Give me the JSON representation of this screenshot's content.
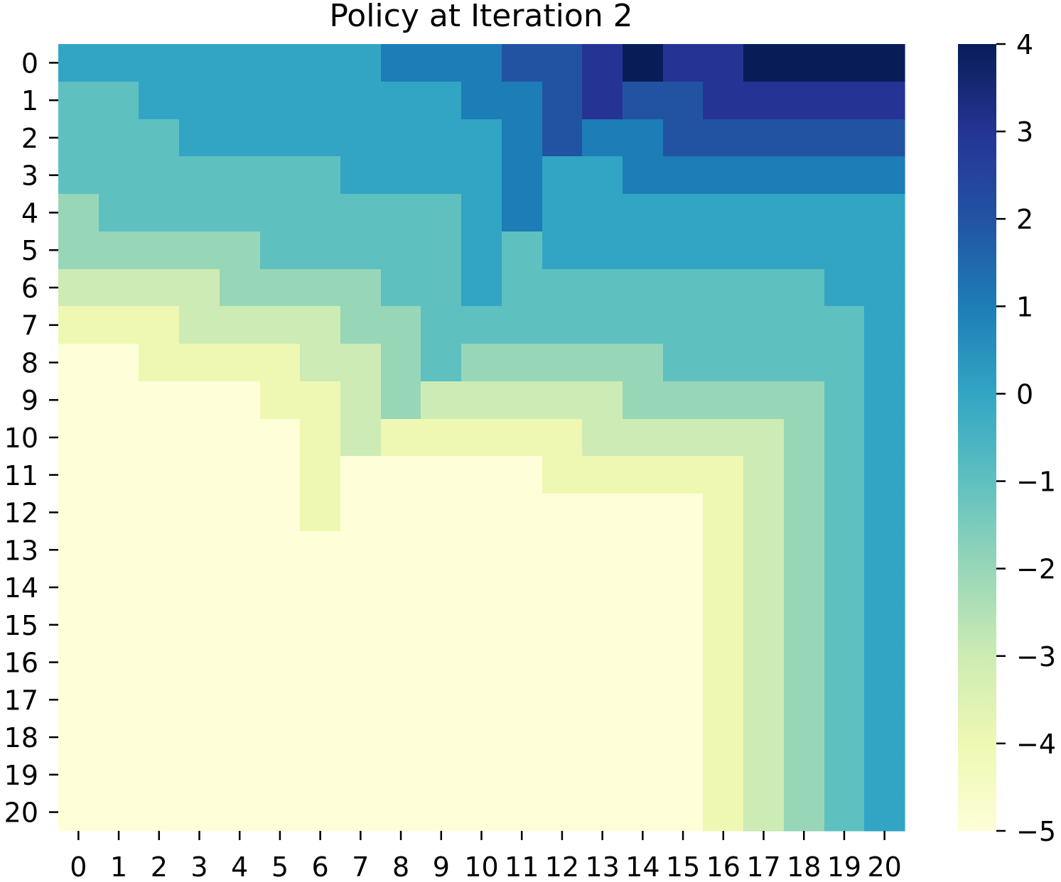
{
  "chart_data": {
    "type": "heatmap",
    "title": "Policy at Iteration 2",
    "xlabel": "",
    "ylabel": "",
    "x_categories": [
      "0",
      "1",
      "2",
      "3",
      "4",
      "5",
      "6",
      "7",
      "8",
      "9",
      "10",
      "11",
      "12",
      "13",
      "14",
      "15",
      "16",
      "17",
      "18",
      "19",
      "20"
    ],
    "y_categories": [
      "0",
      "1",
      "2",
      "3",
      "4",
      "5",
      "6",
      "7",
      "8",
      "9",
      "10",
      "11",
      "12",
      "13",
      "14",
      "15",
      "16",
      "17",
      "18",
      "19",
      "20"
    ],
    "values": [
      [
        0,
        0,
        0,
        0,
        0,
        0,
        0,
        0,
        1,
        1,
        1,
        2,
        2,
        3,
        4,
        3,
        3,
        4,
        4,
        4,
        4
      ],
      [
        -1,
        -1,
        0,
        0,
        0,
        0,
        0,
        0,
        0,
        0,
        1,
        1,
        2,
        3,
        2,
        2,
        3,
        3,
        3,
        3,
        3
      ],
      [
        -1,
        -1,
        -1,
        0,
        0,
        0,
        0,
        0,
        0,
        0,
        0,
        1,
        2,
        1,
        1,
        2,
        2,
        2,
        2,
        2,
        2
      ],
      [
        -1,
        -1,
        -1,
        -1,
        -1,
        -1,
        -1,
        0,
        0,
        0,
        0,
        1,
        0,
        0,
        1,
        1,
        1,
        1,
        1,
        1,
        1
      ],
      [
        -2,
        -1,
        -1,
        -1,
        -1,
        -1,
        -1,
        -1,
        -1,
        -1,
        0,
        1,
        0,
        0,
        0,
        0,
        0,
        0,
        0,
        0,
        0
      ],
      [
        -2,
        -2,
        -2,
        -2,
        -2,
        -1,
        -1,
        -1,
        -1,
        -1,
        0,
        -1,
        0,
        0,
        0,
        0,
        0,
        0,
        0,
        0,
        0
      ],
      [
        -3,
        -3,
        -3,
        -3,
        -2,
        -2,
        -2,
        -2,
        -1,
        -1,
        0,
        -1,
        -1,
        -1,
        -1,
        -1,
        -1,
        -1,
        -1,
        0,
        0
      ],
      [
        -4,
        -4,
        -4,
        -3,
        -3,
        -3,
        -3,
        -2,
        -2,
        -1,
        -1,
        -1,
        -1,
        -1,
        -1,
        -1,
        -1,
        -1,
        -1,
        -1,
        0
      ],
      [
        -5,
        -5,
        -4,
        -4,
        -4,
        -4,
        -3,
        -3,
        -2,
        -1,
        -2,
        -2,
        -2,
        -2,
        -2,
        -1,
        -1,
        -1,
        -1,
        -1,
        0
      ],
      [
        -5,
        -5,
        -5,
        -5,
        -5,
        -4,
        -4,
        -3,
        -2,
        -3,
        -3,
        -3,
        -3,
        -3,
        -2,
        -2,
        -2,
        -2,
        -2,
        -1,
        0
      ],
      [
        -5,
        -5,
        -5,
        -5,
        -5,
        -5,
        -4,
        -3,
        -4,
        -4,
        -4,
        -4,
        -4,
        -3,
        -3,
        -3,
        -3,
        -3,
        -2,
        -1,
        0
      ],
      [
        -5,
        -5,
        -5,
        -5,
        -5,
        -5,
        -4,
        -5,
        -5,
        -5,
        -5,
        -5,
        -4,
        -4,
        -4,
        -4,
        -4,
        -3,
        -2,
        -1,
        0
      ],
      [
        -5,
        -5,
        -5,
        -5,
        -5,
        -5,
        -4,
        -5,
        -5,
        -5,
        -5,
        -5,
        -5,
        -5,
        -5,
        -5,
        -4,
        -3,
        -2,
        -1,
        0
      ],
      [
        -5,
        -5,
        -5,
        -5,
        -5,
        -5,
        -5,
        -5,
        -5,
        -5,
        -5,
        -5,
        -5,
        -5,
        -5,
        -5,
        -4,
        -3,
        -2,
        -1,
        0
      ],
      [
        -5,
        -5,
        -5,
        -5,
        -5,
        -5,
        -5,
        -5,
        -5,
        -5,
        -5,
        -5,
        -5,
        -5,
        -5,
        -5,
        -4,
        -3,
        -2,
        -1,
        0
      ],
      [
        -5,
        -5,
        -5,
        -5,
        -5,
        -5,
        -5,
        -5,
        -5,
        -5,
        -5,
        -5,
        -5,
        -5,
        -5,
        -5,
        -4,
        -3,
        -2,
        -1,
        0
      ],
      [
        -5,
        -5,
        -5,
        -5,
        -5,
        -5,
        -5,
        -5,
        -5,
        -5,
        -5,
        -5,
        -5,
        -5,
        -5,
        -5,
        -4,
        -3,
        -2,
        -1,
        0
      ],
      [
        -5,
        -5,
        -5,
        -5,
        -5,
        -5,
        -5,
        -5,
        -5,
        -5,
        -5,
        -5,
        -5,
        -5,
        -5,
        -5,
        -4,
        -3,
        -2,
        -1,
        0
      ],
      [
        -5,
        -5,
        -5,
        -5,
        -5,
        -5,
        -5,
        -5,
        -5,
        -5,
        -5,
        -5,
        -5,
        -5,
        -5,
        -5,
        -4,
        -3,
        -2,
        -1,
        0
      ],
      [
        -5,
        -5,
        -5,
        -5,
        -5,
        -5,
        -5,
        -5,
        -5,
        -5,
        -5,
        -5,
        -5,
        -5,
        -5,
        -5,
        -4,
        -3,
        -2,
        -1,
        0
      ],
      [
        -5,
        -5,
        -5,
        -5,
        -5,
        -5,
        -5,
        -5,
        -5,
        -5,
        -5,
        -5,
        -5,
        -5,
        -5,
        -5,
        -4,
        -3,
        -2,
        -1,
        0
      ]
    ],
    "colorbar": {
      "range": [
        -5,
        4
      ],
      "ticks": [
        4,
        3,
        2,
        1,
        0,
        -1,
        -2,
        -3,
        -4,
        -5
      ],
      "tick_labels": [
        "4",
        "3",
        "2",
        "1",
        "0",
        "−1",
        "−2",
        "−3",
        "−4",
        "−5"
      ],
      "colormap": "YlGnBu",
      "colors": {
        "4": "#081d58",
        "3": "#253494",
        "2": "#2253a3",
        "1": "#1d7db6",
        "0": "#32a5c4",
        "-1": "#5fc0c0",
        "-2": "#98d6b8",
        "-3": "#cdebb4",
        "-4": "#eef8b2",
        "-5": "#fefed8"
      }
    },
    "grid": false,
    "legend": "colorbar-right"
  }
}
